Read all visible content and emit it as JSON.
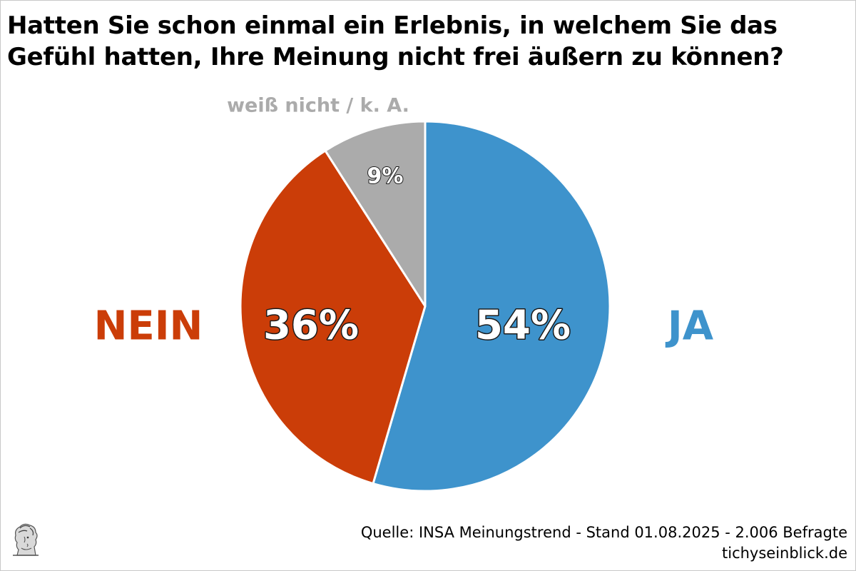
{
  "title_lines": [
    "Hatten Sie schon einmal ein Erlebnis, in welchem Sie das",
    "Gefühl hatten, Ihre Meinung nicht frei äußern zu können?"
  ],
  "source_lines": [
    "Quelle: INSA Meinungstrend - Stand 01.08.2025 - 2.006 Befragte",
    "tichyseinblick.de"
  ],
  "colors": {
    "ja": "#3E93CC",
    "nein": "#CB3D08",
    "weiss_nicht": "#ABABAB"
  },
  "chart_data": {
    "type": "pie",
    "title": "Hatten Sie schon einmal ein Erlebnis, in welchem Sie das Gefühl hatten, Ihre Meinung nicht frei äußern zu können?",
    "unit": "%",
    "slices": [
      {
        "label": "JA",
        "value": 54,
        "value_label": "54%",
        "color": "#3E93CC"
      },
      {
        "label": "NEIN",
        "value": 36,
        "value_label": "36%",
        "color": "#CB3D08"
      },
      {
        "label": "weiß nicht / k. A.",
        "value": 9,
        "value_label": "9%",
        "color": "#ABABAB"
      }
    ],
    "start": "top",
    "direction": "clockwise",
    "legend": "none"
  }
}
